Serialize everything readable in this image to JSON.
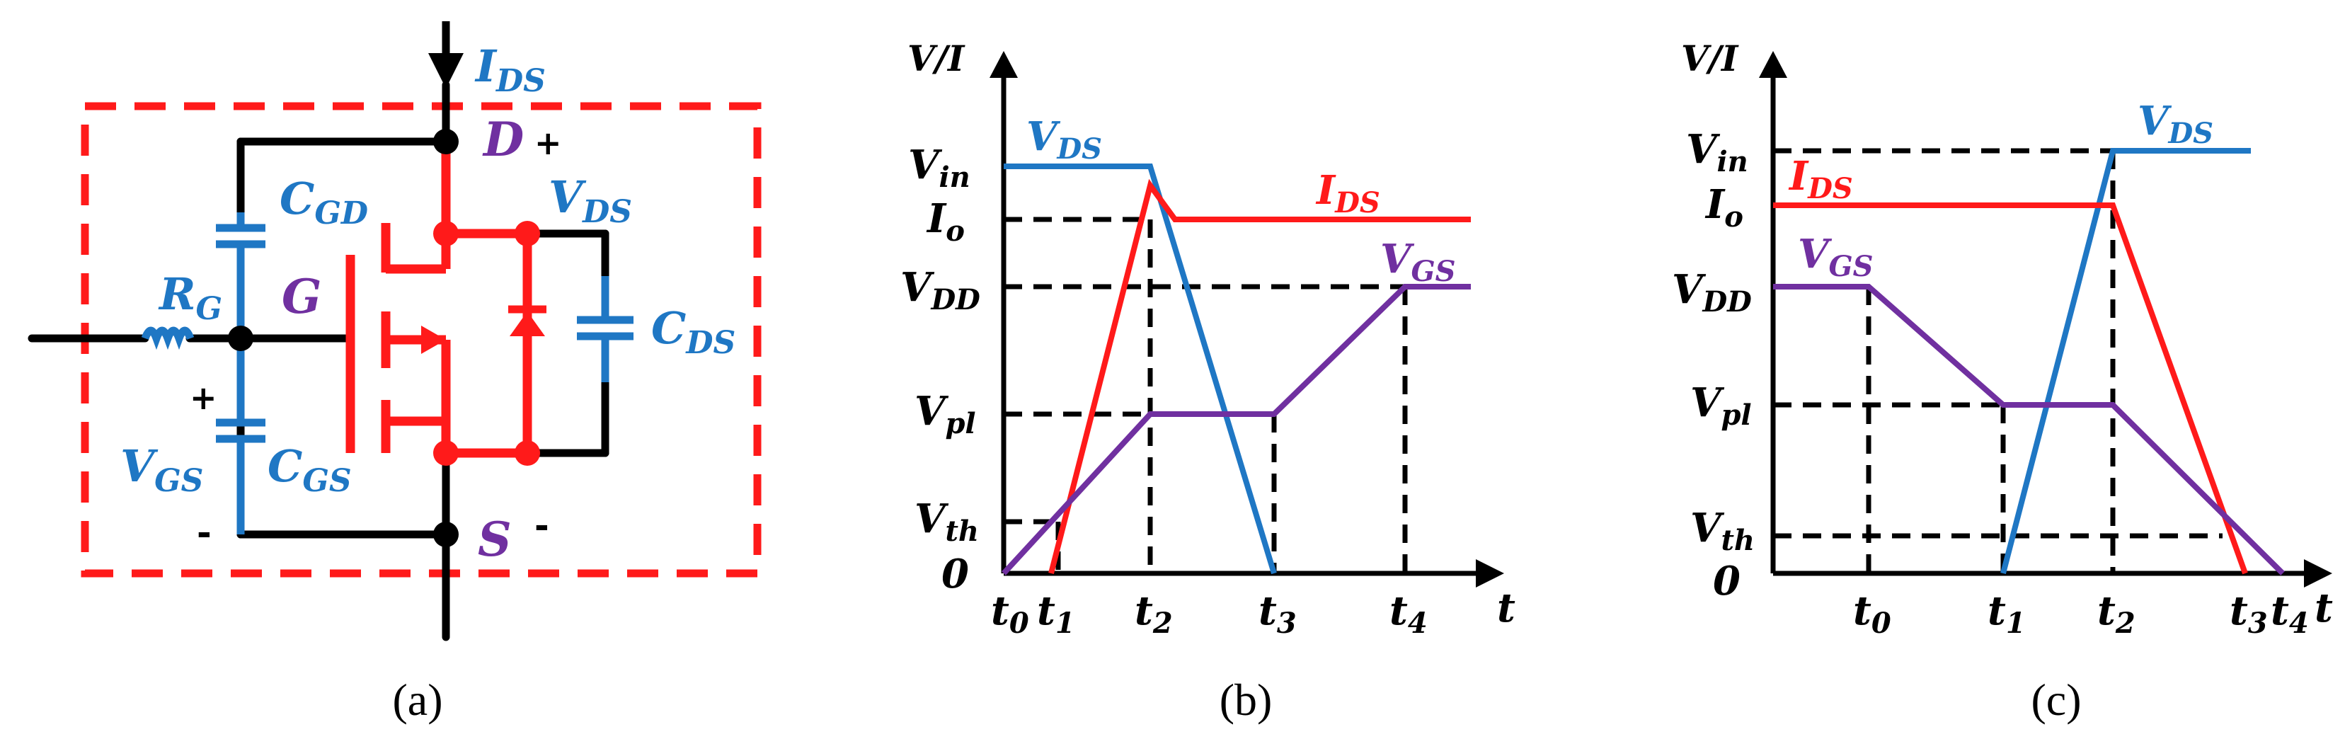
{
  "colors": {
    "blue": "#1f77c4",
    "red": "#ff1a1a",
    "purple": "#7030a0",
    "black": "#000000"
  },
  "panel_a": {
    "caption": "(a)",
    "labels": {
      "ids": {
        "main": "I",
        "sub": "DS"
      },
      "d": "D",
      "d_sign": "+",
      "cgd": {
        "main": "C",
        "sub": "GD"
      },
      "vds": {
        "main": "V",
        "sub": "DS"
      },
      "rg": {
        "main": "R",
        "sub": "G"
      },
      "g": "G",
      "cds": {
        "main": "C",
        "sub": "DS"
      },
      "vgs_plus": "+",
      "vgs": {
        "main": "V",
        "sub": "GS"
      },
      "cgs": {
        "main": "C",
        "sub": "GS"
      },
      "vgs_minus": "-",
      "s": "S",
      "s_sign": "-"
    }
  },
  "panel_b": {
    "caption": "(b)",
    "y_axis_label": "V/I",
    "x_axis_label": "t",
    "y_ticks": {
      "vin": {
        "main": "V",
        "sub": "in"
      },
      "io": {
        "main": "I",
        "sub": "o"
      },
      "vdd": {
        "main": "V",
        "sub": "DD"
      },
      "vpl": {
        "main": "V",
        "sub": "pl"
      },
      "vth": {
        "main": "V",
        "sub": "th"
      },
      "zero": "0"
    },
    "x_ticks": {
      "t0": {
        "main": "t",
        "sub": "0"
      },
      "t1": {
        "main": "t",
        "sub": "1"
      },
      "t2": {
        "main": "t",
        "sub": "2"
      },
      "t3": {
        "main": "t",
        "sub": "3"
      },
      "t4": {
        "main": "t",
        "sub": "4"
      }
    },
    "series_labels": {
      "vds": {
        "main": "V",
        "sub": "DS"
      },
      "ids": {
        "main": "I",
        "sub": "DS"
      },
      "vgs": {
        "main": "V",
        "sub": "GS"
      }
    }
  },
  "panel_c": {
    "caption": "(c)",
    "y_axis_label": "V/I",
    "x_axis_label": "t",
    "y_ticks": {
      "vin": {
        "main": "V",
        "sub": "in"
      },
      "io": {
        "main": "I",
        "sub": "o"
      },
      "vdd": {
        "main": "V",
        "sub": "DD"
      },
      "vpl": {
        "main": "V",
        "sub": "pl"
      },
      "vth": {
        "main": "V",
        "sub": "th"
      },
      "zero": "0"
    },
    "x_ticks": {
      "t0": {
        "main": "t",
        "sub": "0"
      },
      "t1": {
        "main": "t",
        "sub": "1"
      },
      "t2": {
        "main": "t",
        "sub": "2"
      },
      "t3": {
        "main": "t",
        "sub": "3"
      },
      "t4": {
        "main": "t",
        "sub": "4"
      }
    },
    "series_labels": {
      "vds": {
        "main": "V",
        "sub": "DS"
      },
      "ids": {
        "main": "I",
        "sub": "DS"
      },
      "vgs": {
        "main": "V",
        "sub": "GS"
      }
    }
  }
}
